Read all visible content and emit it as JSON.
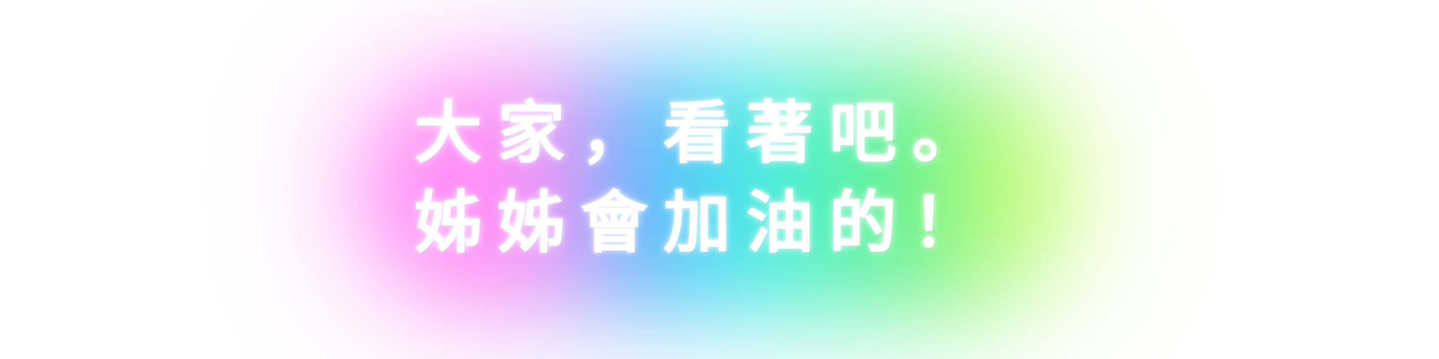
{
  "caption": {
    "line_1": "大家，看著吧。",
    "line_2": "姊姊會加油的！"
  },
  "colors": {
    "background": "#ffffff",
    "text": "#ffffff",
    "glow_pink": "#ff7ef5",
    "glow_blue": "#4fb8ff",
    "glow_cyan": "#3ff0e6",
    "glow_green": "#5cf08a",
    "glow_yellow": "#e8ff6a"
  }
}
